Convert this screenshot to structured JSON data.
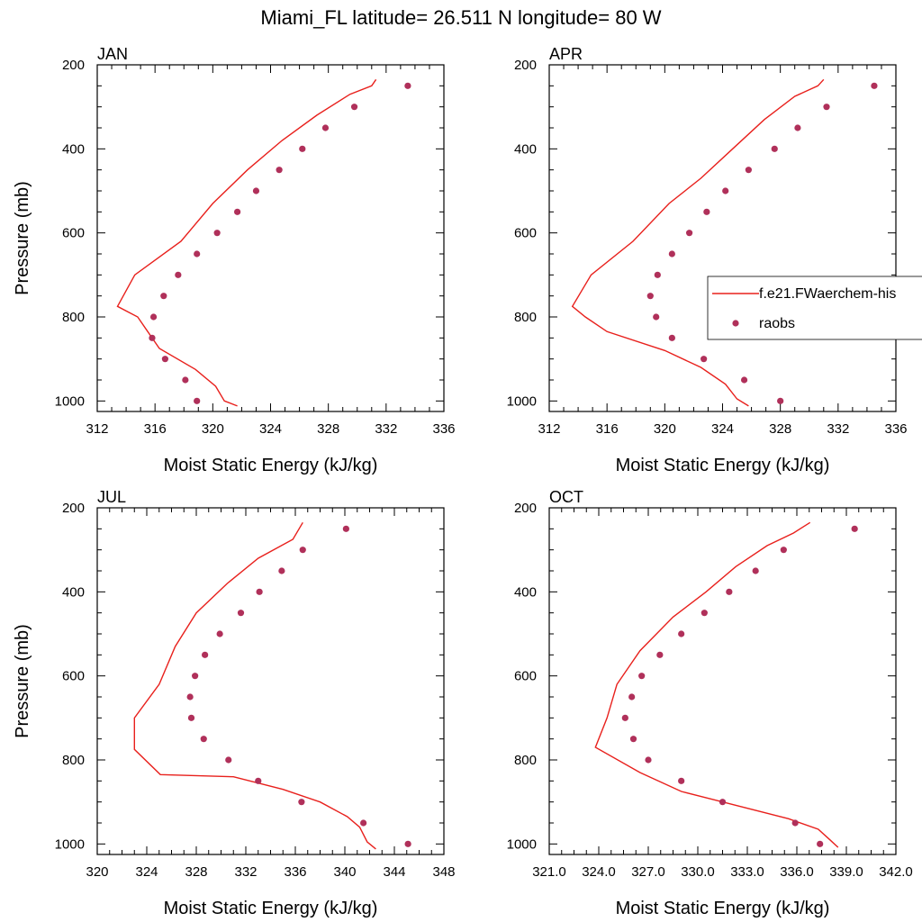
{
  "title": "Miami_FL  latitude= 26.511 N longitude= 80 W",
  "colors": {
    "model_line": "#e8201c",
    "raobs_marker": "#b0305a",
    "axis": "#000000"
  },
  "chart_data": [
    {
      "type": "line",
      "panel": "JAN",
      "xlabel": "Moist Static Energy (kJ/kg)",
      "ylabel": "Pressure (mb)",
      "xlim": [
        312,
        336
      ],
      "ylim": [
        1025,
        200
      ],
      "xticks": [
        "312",
        "316",
        "320",
        "324",
        "328",
        "332",
        "336"
      ],
      "yticks": [
        "200",
        "400",
        "600",
        "800",
        "1000"
      ],
      "series": [
        {
          "name": "f.e21.FWaerchem-his",
          "kind": "line",
          "x": [
            321.7,
            320.8,
            320.2,
            318.8,
            316.3,
            315.5,
            314.8,
            313.4,
            314.6,
            317.8,
            320.0,
            322.4,
            324.8,
            327.2,
            329.5,
            331.0,
            331.3
          ],
          "y": [
            1012,
            1000,
            965,
            925,
            875,
            835,
            800,
            775,
            700,
            620,
            530,
            450,
            380,
            320,
            270,
            250,
            235
          ]
        },
        {
          "name": "raobs",
          "kind": "scatter",
          "x": [
            318.9,
            318.1,
            316.7,
            315.8,
            315.9,
            316.6,
            317.6,
            318.9,
            320.3,
            321.7,
            323.0,
            324.6,
            326.2,
            327.8,
            329.8,
            333.5
          ],
          "y": [
            1000,
            950,
            900,
            850,
            800,
            750,
            700,
            650,
            600,
            550,
            500,
            450,
            400,
            350,
            300,
            250
          ]
        }
      ]
    },
    {
      "type": "line",
      "panel": "APR",
      "xlabel": "Moist Static Energy (kJ/kg)",
      "ylabel": "",
      "xlim": [
        312,
        336
      ],
      "ylim": [
        1025,
        200
      ],
      "xticks": [
        "312",
        "316",
        "320",
        "324",
        "328",
        "332",
        "336"
      ],
      "yticks": [
        "200",
        "400",
        "600",
        "800",
        "1000"
      ],
      "series": [
        {
          "name": "f.e21.FWaerchem-his",
          "kind": "line",
          "x": [
            325.8,
            325.0,
            324.2,
            322.5,
            320.0,
            316.0,
            314.5,
            313.6,
            314.9,
            317.8,
            320.3,
            322.5,
            324.7,
            326.9,
            329.0,
            330.6,
            331.0
          ],
          "y": [
            1012,
            995,
            960,
            920,
            880,
            835,
            800,
            775,
            700,
            620,
            530,
            470,
            400,
            330,
            275,
            250,
            235
          ]
        },
        {
          "name": "raobs",
          "kind": "scatter",
          "x": [
            328.0,
            325.5,
            322.7,
            320.5,
            319.4,
            319.0,
            319.5,
            320.5,
            321.7,
            322.9,
            324.2,
            325.8,
            327.6,
            329.2,
            331.2,
            334.5
          ],
          "y": [
            1000,
            950,
            900,
            850,
            800,
            750,
            700,
            650,
            600,
            550,
            500,
            450,
            400,
            350,
            300,
            250
          ]
        }
      ]
    },
    {
      "type": "line",
      "panel": "JUL",
      "xlabel": "Moist Static Energy (kJ/kg)",
      "ylabel": "Pressure (mb)",
      "xlim": [
        320,
        348
      ],
      "ylim": [
        1025,
        200
      ],
      "xticks": [
        "320",
        "324",
        "328",
        "332",
        "336",
        "340",
        "344",
        "348"
      ],
      "yticks": [
        "200",
        "400",
        "600",
        "800",
        "1000"
      ],
      "series": [
        {
          "name": "f.e21.FWaerchem-his",
          "kind": "line",
          "x": [
            342.5,
            341.8,
            341.2,
            340.2,
            338.0,
            335.0,
            331.0,
            325.1,
            323.0,
            323.0,
            325.0,
            326.3,
            328.0,
            330.5,
            333.0,
            335.8,
            336.6
          ],
          "y": [
            1012,
            995,
            960,
            935,
            900,
            870,
            840,
            835,
            775,
            700,
            620,
            530,
            450,
            380,
            320,
            275,
            235
          ]
        },
        {
          "name": "raobs",
          "kind": "scatter",
          "x": [
            345.1,
            341.5,
            336.5,
            333.0,
            330.6,
            328.6,
            327.6,
            327.5,
            327.9,
            328.7,
            329.9,
            331.6,
            333.1,
            334.9,
            336.6,
            340.1
          ],
          "y": [
            1000,
            950,
            900,
            850,
            800,
            750,
            700,
            650,
            600,
            550,
            500,
            450,
            400,
            350,
            300,
            250
          ]
        }
      ]
    },
    {
      "type": "line",
      "panel": "OCT",
      "xlabel": "Moist Static Energy (kJ/kg)",
      "ylabel": "",
      "xlim": [
        321,
        342
      ],
      "ylim": [
        1025,
        200
      ],
      "xticks": [
        "321.0",
        "324.0",
        "327.0",
        "330.0",
        "333.0",
        "336.0",
        "339.0",
        "342.0"
      ],
      "yticks": [
        "200",
        "400",
        "600",
        "800",
        "1000"
      ],
      "series": [
        {
          "name": "f.e21.FWaerchem-his",
          "kind": "line",
          "x": [
            338.5,
            338.0,
            337.3,
            335.5,
            332.5,
            329.0,
            326.5,
            323.8,
            324.5,
            325.1,
            326.5,
            328.5,
            330.5,
            332.3,
            334.2,
            335.8,
            336.8
          ],
          "y": [
            1008,
            990,
            965,
            940,
            910,
            875,
            830,
            770,
            700,
            620,
            540,
            460,
            400,
            340,
            290,
            260,
            235
          ]
        },
        {
          "name": "raobs",
          "kind": "scatter",
          "x": [
            337.4,
            335.9,
            331.5,
            329.0,
            327.0,
            326.1,
            325.6,
            326.0,
            326.6,
            327.7,
            329.0,
            330.4,
            331.9,
            333.5,
            335.2,
            339.5
          ],
          "y": [
            1000,
            950,
            900,
            850,
            800,
            750,
            700,
            650,
            600,
            550,
            500,
            450,
            400,
            350,
            300,
            250
          ]
        }
      ]
    }
  ],
  "legend": {
    "panel": "APR",
    "entries": [
      {
        "label": "f.e21.FWaerchem-his",
        "marker": "line"
      },
      {
        "label": "raobs",
        "marker": "dot"
      }
    ]
  }
}
